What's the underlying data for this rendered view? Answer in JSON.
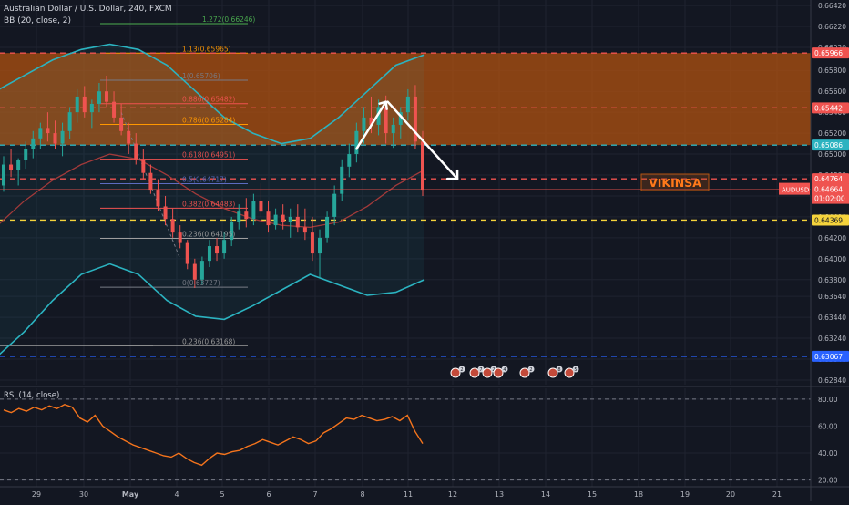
{
  "header": {
    "symbol_title": "Australian Dollar / U.S. Dollar, 240, FXCM",
    "indicator": "BB (20, close, 2)"
  },
  "rsi_panel": {
    "label": "RSI (14, close)"
  },
  "watermark": "VIKINSA",
  "colors": {
    "background": "#131722",
    "bull": "#26a69a",
    "bear": "#ef5350",
    "bb_band": "#2bb3c0",
    "bb_basis": "#a23a3a",
    "zone_fill": "#b5530f",
    "rsi_line": "#f5741c"
  },
  "chart_data": [
    {
      "type": "candlestick",
      "title": "Australian Dollar / U.S. Dollar, 240, FXCM",
      "x_ticks": [
        "29",
        "30",
        "May",
        "4",
        "5",
        "6",
        "7",
        "8",
        "11",
        "12",
        "13",
        "14",
        "15",
        "18",
        "19",
        "20",
        "21"
      ],
      "y_ticks": [
        0.6284,
        0.6304,
        0.6324,
        0.6344,
        0.6364,
        0.638,
        0.64,
        0.642,
        0.644,
        0.646,
        0.648,
        0.65,
        0.652,
        0.654,
        0.656,
        0.658,
        0.6602,
        0.6622,
        0.6642
      ],
      "ylim": [
        0.62796,
        0.66473
      ],
      "grid": true,
      "price_levels": [
        {
          "label": "0.65966",
          "value": 0.65966,
          "color": "#ef5350"
        },
        {
          "label": "0.65442",
          "value": 0.65442,
          "color": "#ef5350"
        },
        {
          "label": "0.65086",
          "value": 0.65086,
          "color": "#2bb3c0"
        },
        {
          "label": "0.64764",
          "value": 0.64764,
          "color": "#ef5350"
        },
        {
          "label": "0.64369",
          "value": 0.64369,
          "color": "#f5d33c"
        },
        {
          "label": "0.63067",
          "value": 0.63067,
          "color": "#2962ff"
        }
      ],
      "current_price": {
        "symbol": "AUDUSD",
        "value": "0.64664",
        "countdown": "01:02:00"
      },
      "fib_levels": [
        {
          "label": "1.272(0.66246)",
          "value": 0.66246,
          "color": "#4caf50"
        },
        {
          "label": "1.13(0.65965)",
          "value": 0.65965,
          "color": "#ff9800"
        },
        {
          "label": "1(0.65706)",
          "value": 0.65706,
          "color": "#787b86"
        },
        {
          "label": "0.886(0.65482)",
          "value": 0.65482,
          "color": "#ef5350"
        },
        {
          "label": "0.786(0.65284)",
          "value": 0.65284,
          "color": "#ff9800"
        },
        {
          "label": "0.618(0.64951)",
          "value": 0.64951,
          "color": "#ef5350"
        },
        {
          "label": "0.5(0.64717)",
          "value": 0.64717,
          "color": "#5c6bc0"
        },
        {
          "label": "0.382(0.64483)",
          "value": 0.64483,
          "color": "#ef5350"
        },
        {
          "label": "0.236(0.64195)",
          "value": 0.64195,
          "color": "#9e9e9e"
        },
        {
          "label": "0(0.63727)",
          "value": 0.63727,
          "color": "#787b86"
        },
        {
          "label": "0.236(0.63168)",
          "value": 0.63168,
          "color": "#9e9e9e"
        }
      ],
      "candles": [
        {
          "o": 0.647,
          "h": 0.6498,
          "l": 0.6464,
          "c": 0.649
        },
        {
          "o": 0.649,
          "h": 0.6505,
          "l": 0.6478,
          "c": 0.6485
        },
        {
          "o": 0.6485,
          "h": 0.6496,
          "l": 0.647,
          "c": 0.6494
        },
        {
          "o": 0.6494,
          "h": 0.6512,
          "l": 0.6486,
          "c": 0.6505
        },
        {
          "o": 0.6505,
          "h": 0.6522,
          "l": 0.6496,
          "c": 0.6515
        },
        {
          "o": 0.6515,
          "h": 0.653,
          "l": 0.6505,
          "c": 0.6525
        },
        {
          "o": 0.6525,
          "h": 0.654,
          "l": 0.6512,
          "c": 0.652
        },
        {
          "o": 0.652,
          "h": 0.6532,
          "l": 0.6505,
          "c": 0.651
        },
        {
          "o": 0.651,
          "h": 0.653,
          "l": 0.6498,
          "c": 0.6522
        },
        {
          "o": 0.6522,
          "h": 0.6545,
          "l": 0.6514,
          "c": 0.654
        },
        {
          "o": 0.654,
          "h": 0.6562,
          "l": 0.653,
          "c": 0.6555
        },
        {
          "o": 0.6555,
          "h": 0.6565,
          "l": 0.6535,
          "c": 0.654
        },
        {
          "o": 0.654,
          "h": 0.6552,
          "l": 0.6525,
          "c": 0.6548
        },
        {
          "o": 0.6548,
          "h": 0.6568,
          "l": 0.654,
          "c": 0.656
        },
        {
          "o": 0.656,
          "h": 0.6575,
          "l": 0.6545,
          "c": 0.655
        },
        {
          "o": 0.655,
          "h": 0.656,
          "l": 0.653,
          "c": 0.6535
        },
        {
          "o": 0.6535,
          "h": 0.6548,
          "l": 0.6518,
          "c": 0.6522
        },
        {
          "o": 0.6522,
          "h": 0.653,
          "l": 0.65,
          "c": 0.651
        },
        {
          "o": 0.651,
          "h": 0.652,
          "l": 0.649,
          "c": 0.6495
        },
        {
          "o": 0.6495,
          "h": 0.6505,
          "l": 0.6476,
          "c": 0.6482
        },
        {
          "o": 0.6482,
          "h": 0.649,
          "l": 0.6462,
          "c": 0.6466
        },
        {
          "o": 0.6466,
          "h": 0.6476,
          "l": 0.6446,
          "c": 0.645
        },
        {
          "o": 0.645,
          "h": 0.646,
          "l": 0.6432,
          "c": 0.6438
        },
        {
          "o": 0.6438,
          "h": 0.6448,
          "l": 0.642,
          "c": 0.6425
        },
        {
          "o": 0.6425,
          "h": 0.6432,
          "l": 0.641,
          "c": 0.6415
        },
        {
          "o": 0.6415,
          "h": 0.6418,
          "l": 0.639,
          "c": 0.6395
        },
        {
          "o": 0.6395,
          "h": 0.64,
          "l": 0.6372,
          "c": 0.638
        },
        {
          "o": 0.638,
          "h": 0.6402,
          "l": 0.6375,
          "c": 0.6398
        },
        {
          "o": 0.6398,
          "h": 0.6418,
          "l": 0.6392,
          "c": 0.6412
        },
        {
          "o": 0.6412,
          "h": 0.642,
          "l": 0.6398,
          "c": 0.6405
        },
        {
          "o": 0.6405,
          "h": 0.6425,
          "l": 0.64,
          "c": 0.6418
        },
        {
          "o": 0.6418,
          "h": 0.644,
          "l": 0.6412,
          "c": 0.6435
        },
        {
          "o": 0.6435,
          "h": 0.6452,
          "l": 0.6428,
          "c": 0.6445
        },
        {
          "o": 0.6445,
          "h": 0.6458,
          "l": 0.643,
          "c": 0.6438
        },
        {
          "o": 0.6438,
          "h": 0.6462,
          "l": 0.6432,
          "c": 0.6455
        },
        {
          "o": 0.6455,
          "h": 0.6472,
          "l": 0.644,
          "c": 0.6445
        },
        {
          "o": 0.6445,
          "h": 0.6455,
          "l": 0.6425,
          "c": 0.6432
        },
        {
          "o": 0.6432,
          "h": 0.6448,
          "l": 0.6428,
          "c": 0.6442
        },
        {
          "o": 0.6442,
          "h": 0.6452,
          "l": 0.6428,
          "c": 0.6435
        },
        {
          "o": 0.6435,
          "h": 0.6448,
          "l": 0.642,
          "c": 0.644
        },
        {
          "o": 0.644,
          "h": 0.6452,
          "l": 0.6425,
          "c": 0.643
        },
        {
          "o": 0.643,
          "h": 0.6448,
          "l": 0.6418,
          "c": 0.6425
        },
        {
          "o": 0.6425,
          "h": 0.644,
          "l": 0.6398,
          "c": 0.6405
        },
        {
          "o": 0.6405,
          "h": 0.6428,
          "l": 0.6382,
          "c": 0.642
        },
        {
          "o": 0.642,
          "h": 0.6445,
          "l": 0.6415,
          "c": 0.644
        },
        {
          "o": 0.644,
          "h": 0.647,
          "l": 0.6432,
          "c": 0.6462
        },
        {
          "o": 0.6462,
          "h": 0.6495,
          "l": 0.6455,
          "c": 0.6488
        },
        {
          "o": 0.6488,
          "h": 0.651,
          "l": 0.6478,
          "c": 0.65
        },
        {
          "o": 0.65,
          "h": 0.653,
          "l": 0.6492,
          "c": 0.6522
        },
        {
          "o": 0.6522,
          "h": 0.6545,
          "l": 0.651,
          "c": 0.6535
        },
        {
          "o": 0.6535,
          "h": 0.6555,
          "l": 0.652,
          "c": 0.6528
        },
        {
          "o": 0.6528,
          "h": 0.6552,
          "l": 0.6518,
          "c": 0.6545
        },
        {
          "o": 0.6545,
          "h": 0.6556,
          "l": 0.651,
          "c": 0.652
        },
        {
          "o": 0.652,
          "h": 0.6535,
          "l": 0.6506,
          "c": 0.6528
        },
        {
          "o": 0.6528,
          "h": 0.6545,
          "l": 0.6515,
          "c": 0.654
        },
        {
          "o": 0.654,
          "h": 0.6562,
          "l": 0.6532,
          "c": 0.6555
        },
        {
          "o": 0.6555,
          "h": 0.6566,
          "l": 0.6505,
          "c": 0.6512
        },
        {
          "o": 0.6512,
          "h": 0.6522,
          "l": 0.646,
          "c": 0.6466
        }
      ],
      "bb_upper": [
        0.656,
        0.6575,
        0.659,
        0.66,
        0.6605,
        0.66,
        0.6585,
        0.656,
        0.6535,
        0.652,
        0.651,
        0.6515,
        0.6535,
        0.656,
        0.6585,
        0.6595
      ],
      "bb_basis": [
        0.643,
        0.6455,
        0.6475,
        0.649,
        0.65,
        0.6495,
        0.648,
        0.6462,
        0.6448,
        0.6438,
        0.6432,
        0.643,
        0.6435,
        0.645,
        0.647,
        0.6485
      ],
      "bb_lower": [
        0.6305,
        0.633,
        0.636,
        0.6385,
        0.6395,
        0.6385,
        0.636,
        0.6345,
        0.6342,
        0.6355,
        0.637,
        0.6385,
        0.6375,
        0.6365,
        0.6368,
        0.638
      ],
      "arrows": {
        "up_to": "0.65500",
        "down_to": "0.64764"
      },
      "event_badges": [
        "2",
        "7",
        "2",
        "4",
        "2",
        "8",
        "5"
      ]
    },
    {
      "type": "line",
      "title": "RSI (14, close)",
      "y_ticks": [
        20.0,
        40.0,
        60.0,
        80.0
      ],
      "ylim": [
        15,
        88
      ],
      "grid": true,
      "reference_lines": [
        80,
        20
      ],
      "series": [
        {
          "values": [
            72,
            70,
            73,
            71,
            74,
            72,
            75,
            73,
            76,
            74,
            66,
            63,
            68,
            60,
            56,
            52,
            49,
            46,
            44,
            42,
            40,
            38,
            37,
            40,
            36,
            33,
            31,
            36,
            40,
            39,
            41,
            42,
            45,
            47,
            50,
            48,
            46,
            49,
            52,
            50,
            47,
            49,
            55,
            58,
            62,
            66,
            65,
            68,
            66,
            64,
            65,
            67,
            64,
            68,
            56,
            47
          ]
        }
      ]
    }
  ]
}
